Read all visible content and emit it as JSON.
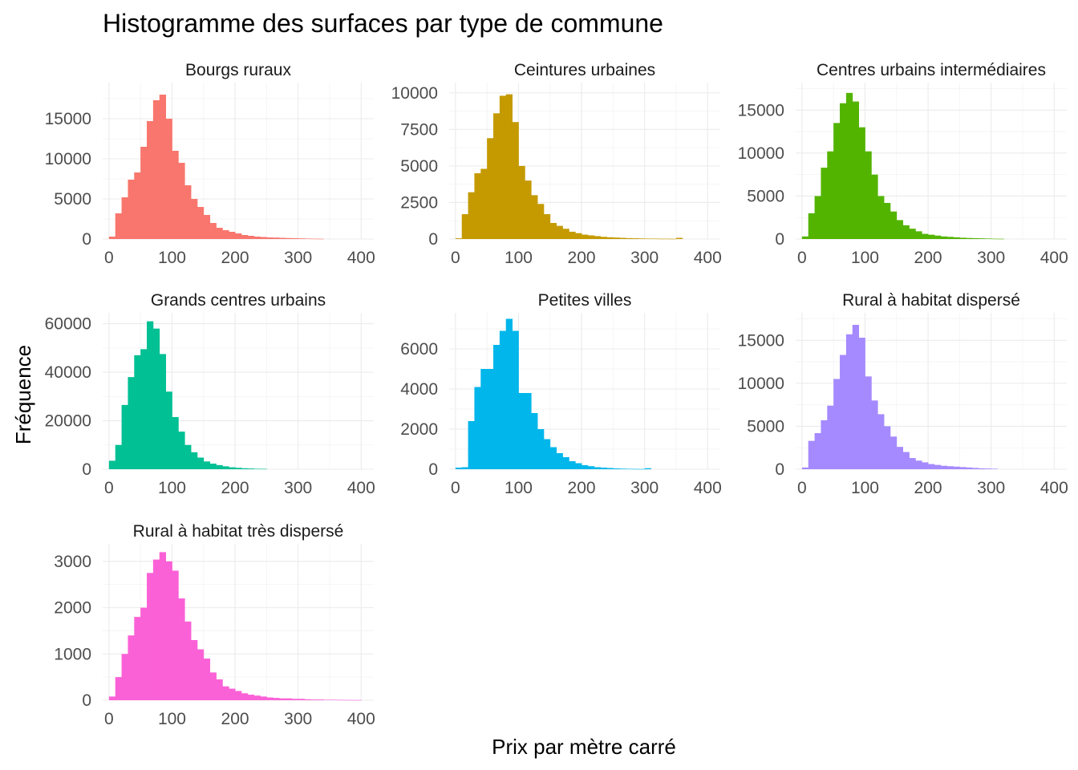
{
  "chart_data": {
    "type": "bar",
    "title": "Histogramme des surfaces par type de commune",
    "xlabel": "Prix par mètre carré",
    "ylabel": "Fréquence",
    "xlim": [
      -10,
      420
    ],
    "x_ticks": [
      0,
      100,
      200,
      300,
      400
    ],
    "grid": true,
    "legend": "none",
    "bin_width": 10,
    "panels": [
      {
        "name": "Bourgs ruraux",
        "color": "#F8766D",
        "ylim": [
          0,
          19500
        ],
        "y_ticks": [
          0,
          5000,
          10000,
          15000
        ],
        "bin_starts": [
          0,
          10,
          20,
          30,
          40,
          50,
          60,
          70,
          80,
          90,
          100,
          110,
          120,
          130,
          140,
          150,
          160,
          170,
          180,
          190,
          200,
          210,
          220,
          230,
          240,
          250,
          260,
          270,
          280,
          290,
          300,
          310,
          320,
          330
        ],
        "counts": [
          300,
          3200,
          5200,
          7400,
          8300,
          11500,
          14700,
          17300,
          18000,
          15000,
          11000,
          9500,
          6700,
          5000,
          4000,
          3000,
          2000,
          1400,
          1100,
          900,
          700,
          500,
          400,
          300,
          250,
          200,
          180,
          150,
          120,
          100,
          80,
          60,
          40,
          30
        ]
      },
      {
        "name": "Ceintures urbaines",
        "color": "#C49A00",
        "ylim": [
          0,
          10700
        ],
        "y_ticks": [
          0,
          2500,
          5000,
          7500,
          10000
        ],
        "y_tick_labels": [
          "0",
          "2500",
          "5000",
          "7500",
          "10000"
        ],
        "bin_starts": [
          0,
          10,
          20,
          30,
          40,
          50,
          60,
          70,
          80,
          90,
          100,
          110,
          120,
          130,
          140,
          150,
          160,
          170,
          180,
          190,
          200,
          210,
          220,
          230,
          240,
          250,
          260,
          270,
          280,
          290,
          300,
          310,
          320,
          330,
          340,
          350
        ],
        "counts": [
          50,
          1700,
          3200,
          4500,
          4800,
          6900,
          8600,
          9800,
          9900,
          8000,
          5000,
          4000,
          3000,
          2400,
          1700,
          1100,
          900,
          700,
          500,
          400,
          300,
          250,
          200,
          150,
          120,
          100,
          80,
          60,
          50,
          40,
          30,
          30,
          20,
          20,
          15,
          80
        ]
      },
      {
        "name": "Centres urbains intermédiaires",
        "color": "#53B400",
        "ylim": [
          0,
          18200
        ],
        "y_ticks": [
          0,
          5000,
          10000,
          15000
        ],
        "bin_starts": [
          0,
          10,
          20,
          30,
          40,
          50,
          60,
          70,
          80,
          90,
          100,
          110,
          120,
          130,
          140,
          150,
          160,
          170,
          180,
          190,
          200,
          210,
          220,
          230,
          240,
          250,
          260,
          270,
          280,
          290,
          300,
          310
        ],
        "counts": [
          300,
          3000,
          5000,
          8300,
          10200,
          13500,
          15800,
          17000,
          16000,
          13000,
          10200,
          7500,
          5000,
          4200,
          3200,
          2200,
          1600,
          1200,
          900,
          600,
          500,
          400,
          300,
          250,
          200,
          150,
          120,
          100,
          80,
          60,
          40,
          30
        ]
      },
      {
        "name": "Grands centres urbains",
        "color": "#00C094",
        "ylim": [
          0,
          64500
        ],
        "y_ticks": [
          0,
          20000,
          40000,
          60000
        ],
        "bin_starts": [
          0,
          10,
          20,
          30,
          40,
          50,
          60,
          70,
          80,
          90,
          100,
          110,
          120,
          130,
          140,
          150,
          160,
          170,
          180,
          190,
          200,
          210,
          220,
          230,
          240
        ],
        "counts": [
          3500,
          10000,
          26500,
          38000,
          47000,
          49500,
          61000,
          58000,
          47500,
          32000,
          21500,
          15500,
          10000,
          7000,
          4800,
          3200,
          2300,
          1700,
          1200,
          800,
          600,
          400,
          300,
          200,
          150
        ]
      },
      {
        "name": "Petites villes",
        "color": "#00B6EB",
        "ylim": [
          0,
          7800
        ],
        "y_ticks": [
          0,
          2000,
          4000,
          6000
        ],
        "bin_starts": [
          0,
          10,
          20,
          30,
          40,
          50,
          60,
          70,
          80,
          90,
          100,
          110,
          120,
          130,
          140,
          150,
          160,
          170,
          180,
          190,
          200,
          210,
          220,
          230,
          240,
          250,
          260,
          270,
          280,
          290,
          300
        ],
        "counts": [
          80,
          100,
          2400,
          4100,
          5000,
          5000,
          6200,
          6900,
          7500,
          6900,
          3800,
          3800,
          2800,
          2000,
          1500,
          1100,
          800,
          600,
          400,
          300,
          200,
          150,
          100,
          80,
          60,
          40,
          30,
          20,
          15,
          10,
          50
        ]
      },
      {
        "name": "Rural à habitat dispersé",
        "color": "#A58AFF",
        "ylim": [
          0,
          18200
        ],
        "y_ticks": [
          0,
          5000,
          10000,
          15000
        ],
        "bin_starts": [
          0,
          10,
          20,
          30,
          40,
          50,
          60,
          70,
          80,
          90,
          100,
          110,
          120,
          130,
          140,
          150,
          160,
          170,
          180,
          190,
          200,
          210,
          220,
          230,
          240,
          250,
          260,
          270,
          280,
          290,
          300
        ],
        "counts": [
          200,
          3300,
          4200,
          5700,
          7400,
          10500,
          13300,
          15700,
          16800,
          15300,
          10800,
          8000,
          6400,
          5000,
          3800,
          2600,
          2000,
          1300,
          1000,
          800,
          600,
          500,
          400,
          350,
          300,
          250,
          200,
          150,
          100,
          80,
          60
        ]
      },
      {
        "name": "Rural à habitat très dispersé",
        "color": "#FB61D7",
        "ylim": [
          0,
          3380
        ],
        "y_ticks": [
          0,
          1000,
          2000,
          3000
        ],
        "bin_starts": [
          0,
          10,
          20,
          30,
          40,
          50,
          60,
          70,
          80,
          90,
          100,
          110,
          120,
          130,
          140,
          150,
          160,
          170,
          180,
          190,
          200,
          210,
          220,
          230,
          240,
          250,
          260,
          270,
          280,
          290,
          300,
          310,
          320,
          330,
          340,
          350,
          360,
          370,
          380,
          390
        ],
        "counts": [
          80,
          500,
          1000,
          1400,
          1800,
          2000,
          2750,
          3040,
          3200,
          3000,
          2800,
          2200,
          1700,
          1300,
          1100,
          900,
          600,
          450,
          300,
          250,
          200,
          150,
          120,
          100,
          80,
          60,
          50,
          40,
          40,
          30,
          30,
          20,
          15,
          15,
          10,
          10,
          8,
          6,
          5,
          4
        ]
      }
    ]
  }
}
